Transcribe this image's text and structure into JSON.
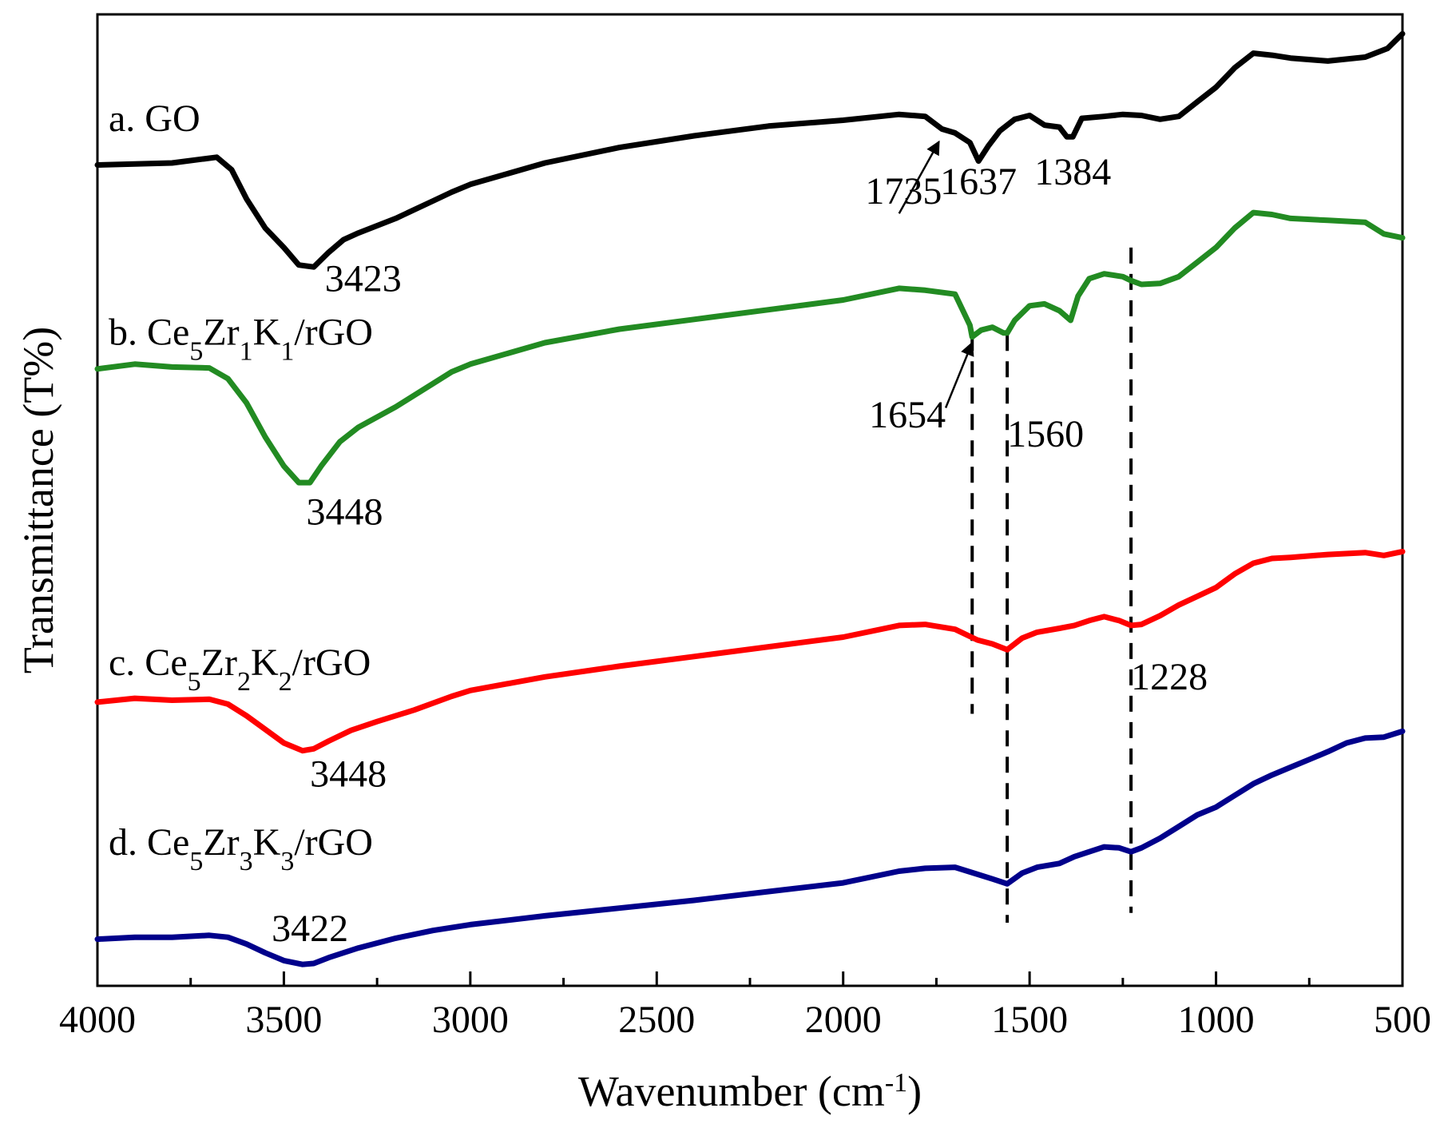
{
  "chart_data": {
    "type": "line",
    "title": "",
    "xlabel": "Wavenumber (cm",
    "xlabel_sup": "-1",
    "xlabel_close": ")",
    "ylabel": "Transmittance (T%)",
    "xlim": [
      4000,
      500
    ],
    "ylim": [
      0,
      100
    ],
    "x_ticks": [
      4000,
      3500,
      3000,
      2500,
      2000,
      1500,
      1000,
      500
    ],
    "x_tick_labels": [
      "4000",
      "3500",
      "3000",
      "2500",
      "2000",
      "1500",
      "1000",
      "500"
    ],
    "x_minor_step": 250,
    "series": [
      {
        "id": "go",
        "label_parts": [
          [
            "a. GO",
            "n"
          ]
        ],
        "color": "#000000",
        "points": [
          [
            4000,
            84.5
          ],
          [
            3800,
            84.7
          ],
          [
            3680,
            85.3
          ],
          [
            3640,
            84
          ],
          [
            3600,
            81
          ],
          [
            3550,
            78
          ],
          [
            3500,
            76
          ],
          [
            3460,
            74.2
          ],
          [
            3420,
            74
          ],
          [
            3380,
            75.5
          ],
          [
            3340,
            76.8
          ],
          [
            3300,
            77.5
          ],
          [
            3200,
            79
          ],
          [
            3100,
            80.8
          ],
          [
            3050,
            81.7
          ],
          [
            3000,
            82.5
          ],
          [
            2800,
            84.7
          ],
          [
            2600,
            86.3
          ],
          [
            2400,
            87.5
          ],
          [
            2200,
            88.5
          ],
          [
            2000,
            89.1
          ],
          [
            1850,
            89.7
          ],
          [
            1780,
            89.5
          ],
          [
            1735,
            88.2
          ],
          [
            1700,
            87.8
          ],
          [
            1660,
            86.8
          ],
          [
            1637,
            84.9
          ],
          [
            1610,
            86.5
          ],
          [
            1580,
            88
          ],
          [
            1540,
            89.2
          ],
          [
            1500,
            89.6
          ],
          [
            1460,
            88.6
          ],
          [
            1420,
            88.4
          ],
          [
            1400,
            87.4
          ],
          [
            1384,
            87.4
          ],
          [
            1360,
            89.3
          ],
          [
            1300,
            89.5
          ],
          [
            1250,
            89.7
          ],
          [
            1200,
            89.6
          ],
          [
            1150,
            89.2
          ],
          [
            1100,
            89.5
          ],
          [
            1050,
            91
          ],
          [
            1000,
            92.5
          ],
          [
            950,
            94.5
          ],
          [
            900,
            96
          ],
          [
            850,
            95.8
          ],
          [
            800,
            95.5
          ],
          [
            700,
            95.2
          ],
          [
            600,
            95.6
          ],
          [
            540,
            96.5
          ],
          [
            500,
            98
          ]
        ]
      },
      {
        "id": "ce5zr1k1",
        "label_parts": [
          [
            "b. Ce",
            "n"
          ],
          [
            "5",
            "sub"
          ],
          [
            "Zr",
            "n"
          ],
          [
            "1",
            "sub"
          ],
          [
            "K",
            "n"
          ],
          [
            "1",
            "sub"
          ],
          [
            "/rGO",
            "n"
          ]
        ],
        "color": "#228b22",
        "points": [
          [
            4000,
            63.5
          ],
          [
            3900,
            64
          ],
          [
            3800,
            63.7
          ],
          [
            3700,
            63.6
          ],
          [
            3650,
            62.5
          ],
          [
            3600,
            60
          ],
          [
            3550,
            56.5
          ],
          [
            3500,
            53.5
          ],
          [
            3460,
            51.8
          ],
          [
            3430,
            51.8
          ],
          [
            3400,
            53.5
          ],
          [
            3350,
            56
          ],
          [
            3300,
            57.5
          ],
          [
            3200,
            59.6
          ],
          [
            3100,
            62
          ],
          [
            3050,
            63.2
          ],
          [
            3000,
            64
          ],
          [
            2800,
            66.2
          ],
          [
            2600,
            67.6
          ],
          [
            2400,
            68.6
          ],
          [
            2200,
            69.6
          ],
          [
            2000,
            70.6
          ],
          [
            1850,
            71.8
          ],
          [
            1780,
            71.6
          ],
          [
            1700,
            71.2
          ],
          [
            1660,
            68
          ],
          [
            1654,
            66.8
          ],
          [
            1630,
            67.5
          ],
          [
            1600,
            67.8
          ],
          [
            1570,
            67.2
          ],
          [
            1560,
            67.2
          ],
          [
            1540,
            68.5
          ],
          [
            1500,
            70
          ],
          [
            1460,
            70.2
          ],
          [
            1420,
            69.5
          ],
          [
            1390,
            68.5
          ],
          [
            1370,
            71
          ],
          [
            1340,
            72.8
          ],
          [
            1300,
            73.3
          ],
          [
            1250,
            73
          ],
          [
            1228,
            72.6
          ],
          [
            1200,
            72.2
          ],
          [
            1150,
            72.3
          ],
          [
            1100,
            73
          ],
          [
            1050,
            74.5
          ],
          [
            1000,
            76
          ],
          [
            950,
            78
          ],
          [
            900,
            79.6
          ],
          [
            850,
            79.4
          ],
          [
            800,
            79
          ],
          [
            700,
            78.8
          ],
          [
            600,
            78.6
          ],
          [
            550,
            77.4
          ],
          [
            500,
            77
          ]
        ]
      },
      {
        "id": "ce5zr2k2",
        "label_parts": [
          [
            "c. Ce",
            "n"
          ],
          [
            "5",
            "sub"
          ],
          [
            "Zr",
            "n"
          ],
          [
            "2",
            "sub"
          ],
          [
            "K",
            "n"
          ],
          [
            "2",
            "sub"
          ],
          [
            "/rGO",
            "n"
          ]
        ],
        "color": "#ff0000",
        "points": [
          [
            4000,
            29.2
          ],
          [
            3900,
            29.6
          ],
          [
            3800,
            29.4
          ],
          [
            3700,
            29.5
          ],
          [
            3650,
            29
          ],
          [
            3600,
            27.8
          ],
          [
            3550,
            26.4
          ],
          [
            3500,
            25
          ],
          [
            3450,
            24.2
          ],
          [
            3420,
            24.4
          ],
          [
            3380,
            25.2
          ],
          [
            3320,
            26.3
          ],
          [
            3250,
            27.2
          ],
          [
            3150,
            28.4
          ],
          [
            3050,
            29.8
          ],
          [
            3000,
            30.4
          ],
          [
            2800,
            31.8
          ],
          [
            2600,
            32.9
          ],
          [
            2400,
            33.9
          ],
          [
            2200,
            34.9
          ],
          [
            2000,
            35.9
          ],
          [
            1850,
            37.1
          ],
          [
            1780,
            37.2
          ],
          [
            1700,
            36.7
          ],
          [
            1640,
            35.6
          ],
          [
            1600,
            35.2
          ],
          [
            1560,
            34.6
          ],
          [
            1520,
            35.8
          ],
          [
            1480,
            36.4
          ],
          [
            1420,
            36.8
          ],
          [
            1380,
            37.1
          ],
          [
            1340,
            37.6
          ],
          [
            1300,
            38
          ],
          [
            1260,
            37.6
          ],
          [
            1228,
            37.1
          ],
          [
            1200,
            37.2
          ],
          [
            1150,
            38.1
          ],
          [
            1100,
            39.2
          ],
          [
            1050,
            40.1
          ],
          [
            1000,
            41
          ],
          [
            950,
            42.4
          ],
          [
            900,
            43.5
          ],
          [
            850,
            44
          ],
          [
            800,
            44.1
          ],
          [
            700,
            44.4
          ],
          [
            600,
            44.6
          ],
          [
            550,
            44.3
          ],
          [
            500,
            44.7
          ]
        ]
      },
      {
        "id": "ce5zr3k3",
        "label_parts": [
          [
            "d. Ce",
            "n"
          ],
          [
            "5",
            "sub"
          ],
          [
            "Zr",
            "n"
          ],
          [
            "3",
            "sub"
          ],
          [
            "K",
            "n"
          ],
          [
            "3",
            "sub"
          ],
          [
            "/rGO",
            "n"
          ]
        ],
        "color": "#00008b",
        "points": [
          [
            4000,
            4.8
          ],
          [
            3900,
            5
          ],
          [
            3800,
            5
          ],
          [
            3700,
            5.2
          ],
          [
            3650,
            5
          ],
          [
            3600,
            4.3
          ],
          [
            3550,
            3.4
          ],
          [
            3500,
            2.6
          ],
          [
            3450,
            2.2
          ],
          [
            3420,
            2.3
          ],
          [
            3380,
            2.9
          ],
          [
            3300,
            3.9
          ],
          [
            3200,
            4.9
          ],
          [
            3100,
            5.7
          ],
          [
            3000,
            6.3
          ],
          [
            2800,
            7.2
          ],
          [
            2600,
            8
          ],
          [
            2400,
            8.8
          ],
          [
            2200,
            9.7
          ],
          [
            2000,
            10.6
          ],
          [
            1850,
            11.8
          ],
          [
            1780,
            12.1
          ],
          [
            1700,
            12.2
          ],
          [
            1650,
            11.6
          ],
          [
            1600,
            11
          ],
          [
            1560,
            10.5
          ],
          [
            1520,
            11.6
          ],
          [
            1480,
            12.2
          ],
          [
            1420,
            12.6
          ],
          [
            1380,
            13.3
          ],
          [
            1340,
            13.8
          ],
          [
            1300,
            14.3
          ],
          [
            1260,
            14.2
          ],
          [
            1228,
            13.8
          ],
          [
            1200,
            14.2
          ],
          [
            1150,
            15.2
          ],
          [
            1100,
            16.4
          ],
          [
            1050,
            17.6
          ],
          [
            1000,
            18.4
          ],
          [
            950,
            19.6
          ],
          [
            900,
            20.8
          ],
          [
            850,
            21.7
          ],
          [
            800,
            22.5
          ],
          [
            750,
            23.3
          ],
          [
            700,
            24.1
          ],
          [
            650,
            25
          ],
          [
            600,
            25.5
          ],
          [
            550,
            25.6
          ],
          [
            500,
            26.2
          ]
        ]
      }
    ],
    "series_label_anchor_x": 3970,
    "series_label_y": [
      88,
      66,
      32,
      13.5
    ],
    "reference_lines": [
      {
        "x": 1654,
        "y_from": 67,
        "y_to": 28
      },
      {
        "x": 1560,
        "y_from": 67,
        "y_to": 6.5
      },
      {
        "x": 1228,
        "y_from": 76,
        "y_to": 7.5
      }
    ],
    "peak_labels": [
      {
        "text": "3423",
        "x": 3390,
        "y": 71.5,
        "align": "start"
      },
      {
        "text": "1735",
        "x": 1735,
        "y": 80.5,
        "align": "end"
      },
      {
        "text": "1637",
        "x": 1637,
        "y": 81.5,
        "align": "middle"
      },
      {
        "text": "1384",
        "x": 1384,
        "y": 82.5,
        "align": "middle"
      },
      {
        "text": "3448",
        "x": 3440,
        "y": 47.5,
        "align": "start"
      },
      {
        "text": "1654",
        "x": 1725,
        "y": 57.5,
        "align": "end"
      },
      {
        "text": "1560",
        "x": 1560,
        "y": 55.5,
        "align": "start"
      },
      {
        "text": "3448",
        "x": 3430,
        "y": 20.5,
        "align": "start"
      },
      {
        "text": "1228",
        "x": 1228,
        "y": 30.5,
        "align": "start"
      },
      {
        "text": "3422",
        "x": 3430,
        "y": 4.6,
        "align": "middle"
      }
    ],
    "arrows": [
      {
        "from": [
          1850,
          79.5
        ],
        "to": [
          1743,
          86.9
        ]
      },
      {
        "from": [
          1725,
          59.5
        ],
        "to": [
          1654,
          66.2
        ]
      }
    ]
  }
}
